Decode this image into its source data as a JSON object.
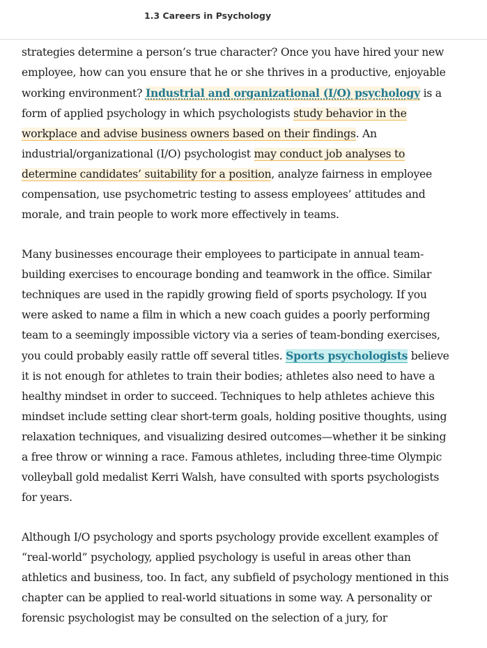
{
  "header": {
    "title": "1.3 Careers in Psychology"
  },
  "paragraphs": {
    "p1": {
      "t1": "strategies determine a person’s true character? Once you have hired your new employee, how can you ensure that he or she thrives in a productive, enjoyable working environment? ",
      "term1": "Industrial and organizational (I/O) psychology",
      "t2": " is a form of applied psychology in which psychologists ",
      "hl1": "study behavior in the workplace and advise business owners based on their findings",
      "t3": ". An industrial/organizational (I/O) psychologist ",
      "hl2": "may conduct job analyses to determine candidates’ suitability for a position",
      "t4": ", analyze fairness in employee compensation, use psychometric testing to assess employees’ attitudes and morale, and train people to work more effectively in teams."
    },
    "p2": {
      "t1": "Many businesses encourage their employees to participate in annual team-building exercises to encourage bonding and teamwork in the office. Similar techniques are used in the rapidly growing field of sports psychology. If you were asked to name a film in which a new coach guides a poorly performing team to a seemingly impossible victory via a series of team-bonding exercises, you could probably easily rattle off several titles. ",
      "term1": "Sports psychologists",
      "t2": " believe it is not enough for athletes to train their bodies; athletes also need to have a healthy mindset in order to succeed. Techniques to help athletes achieve this mindset include setting clear short-term goals, holding positive thoughts, using relaxation techniques, and visualizing desired outcomes—whether it be sinking a free throw or winning a race. Famous athletes, including three-time Olympic volleyball gold medalist Kerri Walsh, have consulted with sports psychologists for years."
    },
    "p3": {
      "t1": "Although I/O psychology and sports psychology provide excellent examples of “real-world” psychology, applied psychology is useful in areas other than athletics and business, too. In fact, any subfield of psychology mentioned in this chapter can be applied to real-world situations in some way. A personality or forensic psychologist may be consulted on the selection of a jury, for"
    }
  },
  "colors": {
    "term": "#227a92",
    "highlight_yellow": "#fdf4e1",
    "highlight_blue": "#c9efef"
  }
}
